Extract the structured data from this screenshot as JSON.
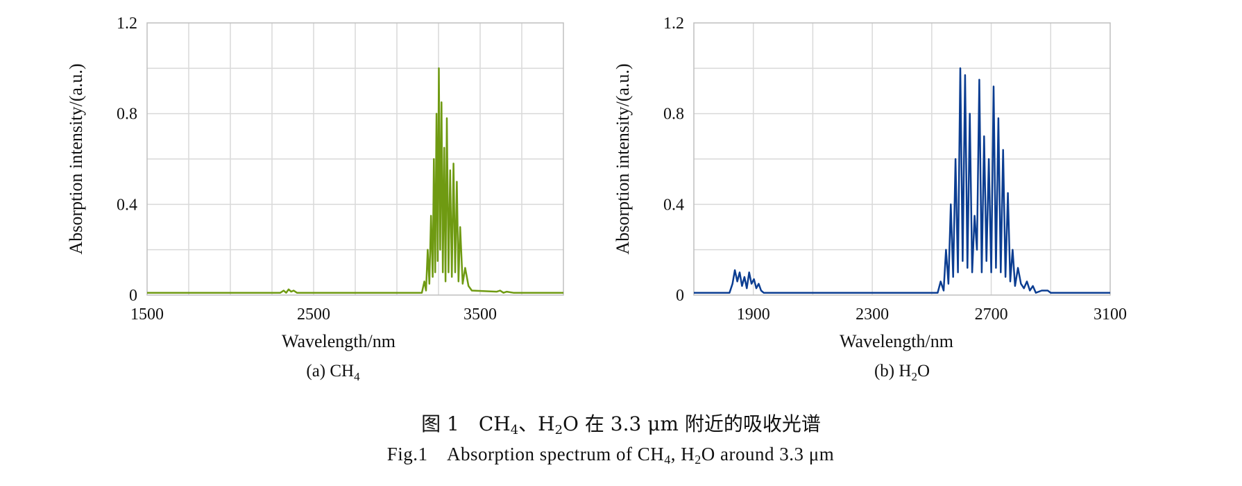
{
  "chart_data": [
    {
      "type": "line",
      "xlabel": "Wavelength/nm",
      "ylabel": "Absorption intensity/(a.u.)",
      "xlim": [
        1500,
        4000
      ],
      "ylim": [
        0,
        1.2
      ],
      "xticks": [
        1500,
        2500,
        3500
      ],
      "xtick_labels": [
        "1500",
        "2500",
        "3500"
      ],
      "yticks": [
        0,
        0.4,
        0.8,
        1.2
      ],
      "ytick_labels": [
        "0",
        "0.4",
        "0.8",
        "1.2"
      ],
      "grid": true,
      "color": "#6f9a12",
      "caption_prefix": "(a) CH",
      "caption_sub": "4",
      "series": [
        {
          "x": [
            1500,
            2300,
            2320,
            2335,
            2350,
            2365,
            2380,
            2400,
            3150,
            3165,
            3175,
            3185,
            3195,
            3205,
            3215,
            3222,
            3230,
            3238,
            3245,
            3252,
            3260,
            3268,
            3276,
            3284,
            3292,
            3300,
            3310,
            3320,
            3330,
            3340,
            3350,
            3360,
            3370,
            3380,
            3395,
            3410,
            3430,
            3450,
            3600,
            3620,
            3640,
            3660,
            3700,
            4000
          ],
          "y": [
            0.01,
            0.01,
            0.02,
            0.01,
            0.025,
            0.015,
            0.02,
            0.01,
            0.01,
            0.06,
            0.02,
            0.2,
            0.05,
            0.35,
            0.08,
            0.6,
            0.1,
            0.8,
            0.15,
            1.0,
            0.2,
            0.85,
            0.1,
            0.65,
            0.06,
            0.78,
            0.1,
            0.55,
            0.08,
            0.58,
            0.1,
            0.5,
            0.06,
            0.3,
            0.05,
            0.12,
            0.04,
            0.02,
            0.015,
            0.02,
            0.01,
            0.015,
            0.01,
            0.01
          ]
        }
      ]
    },
    {
      "type": "line",
      "xlabel": "Wavelength/nm",
      "ylabel": "Absorption intensity/(a.u.)",
      "xlim": [
        1700,
        3100
      ],
      "ylim": [
        0,
        1.2
      ],
      "xticks": [
        1900,
        2300,
        2700,
        3100
      ],
      "xtick_labels": [
        "1900",
        "2300",
        "2700",
        "3100"
      ],
      "yticks": [
        0,
        0.4,
        0.8,
        1.2
      ],
      "ytick_labels": [
        "0",
        "0.4",
        "0.8",
        "1.2"
      ],
      "grid": true,
      "color": "#0b3d91",
      "caption_prefix": "(b) H",
      "caption_sub": "2",
      "caption_suffix": "O",
      "series": [
        {
          "x": [
            1700,
            1820,
            1830,
            1838,
            1846,
            1854,
            1862,
            1870,
            1878,
            1886,
            1894,
            1902,
            1910,
            1918,
            1926,
            1935,
            2520,
            2530,
            2540,
            2548,
            2556,
            2564,
            2572,
            2580,
            2588,
            2596,
            2604,
            2612,
            2620,
            2628,
            2636,
            2644,
            2652,
            2660,
            2668,
            2676,
            2684,
            2692,
            2700,
            2708,
            2716,
            2724,
            2732,
            2740,
            2748,
            2756,
            2764,
            2772,
            2780,
            2790,
            2800,
            2810,
            2820,
            2830,
            2840,
            2850,
            2870,
            2890,
            2900,
            3100
          ],
          "y": [
            0.01,
            0.01,
            0.05,
            0.11,
            0.06,
            0.1,
            0.04,
            0.08,
            0.03,
            0.1,
            0.05,
            0.07,
            0.03,
            0.05,
            0.02,
            0.01,
            0.01,
            0.06,
            0.02,
            0.2,
            0.05,
            0.4,
            0.08,
            0.6,
            0.1,
            1.0,
            0.15,
            0.97,
            0.12,
            0.8,
            0.1,
            0.35,
            0.2,
            0.95,
            0.1,
            0.7,
            0.15,
            0.6,
            0.1,
            0.92,
            0.12,
            0.78,
            0.1,
            0.64,
            0.08,
            0.45,
            0.06,
            0.2,
            0.04,
            0.12,
            0.05,
            0.03,
            0.06,
            0.02,
            0.04,
            0.01,
            0.02,
            0.02,
            0.01,
            0.01
          ]
        }
      ]
    }
  ],
  "figure_caption_cn": {
    "prefix": "图 1　CH",
    "sub1": "4",
    "mid": "、H",
    "sub2": "2",
    "suffix": "O 在 3.3 μm 附近的吸收光谱"
  },
  "figure_caption_en": {
    "prefix": "Fig.1　Absorption spectrum of CH",
    "sub1": "4",
    "mid": ", H",
    "sub2": "2",
    "suffix": "O around 3.3 μm"
  }
}
